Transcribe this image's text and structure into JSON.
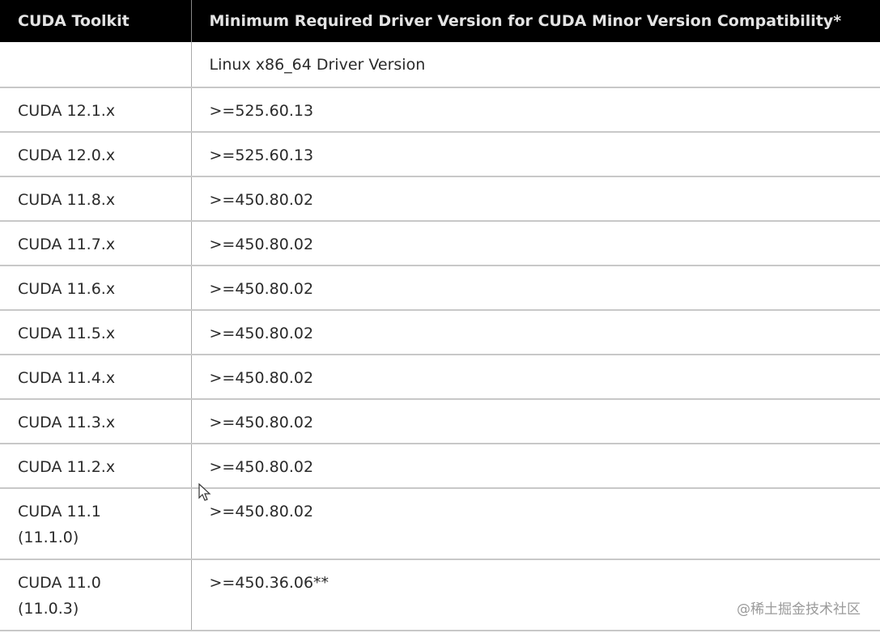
{
  "table": {
    "headers": [
      "CUDA Toolkit",
      "Minimum Required Driver Version for CUDA Minor Version Compatibility*"
    ],
    "subheader": [
      "",
      "Linux x86_64 Driver Version"
    ],
    "rows": [
      {
        "toolkit": "CUDA 12.1.x",
        "toolkit_sub": "",
        "driver": ">=525.60.13"
      },
      {
        "toolkit": "CUDA 12.0.x",
        "toolkit_sub": "",
        "driver": ">=525.60.13"
      },
      {
        "toolkit": "CUDA 11.8.x",
        "toolkit_sub": "",
        "driver": ">=450.80.02"
      },
      {
        "toolkit": "CUDA 11.7.x",
        "toolkit_sub": "",
        "driver": ">=450.80.02"
      },
      {
        "toolkit": "CUDA 11.6.x",
        "toolkit_sub": "",
        "driver": ">=450.80.02"
      },
      {
        "toolkit": "CUDA 11.5.x",
        "toolkit_sub": "",
        "driver": ">=450.80.02"
      },
      {
        "toolkit": "CUDA 11.4.x",
        "toolkit_sub": "",
        "driver": ">=450.80.02"
      },
      {
        "toolkit": "CUDA 11.3.x",
        "toolkit_sub": "",
        "driver": ">=450.80.02"
      },
      {
        "toolkit": "CUDA 11.2.x",
        "toolkit_sub": "",
        "driver": ">=450.80.02"
      },
      {
        "toolkit": "CUDA 11.1",
        "toolkit_sub": "(11.1.0)",
        "driver": ">=450.80.02"
      },
      {
        "toolkit": "CUDA 11.0",
        "toolkit_sub": "(11.0.3)",
        "driver": ">=450.36.06**"
      }
    ]
  },
  "watermark": "@稀土掘金技术社区",
  "colors": {
    "header_bg": "#000000",
    "header_text": "#e4e4e4",
    "text": "#2a2a2a",
    "border": "#c8c8c8"
  }
}
